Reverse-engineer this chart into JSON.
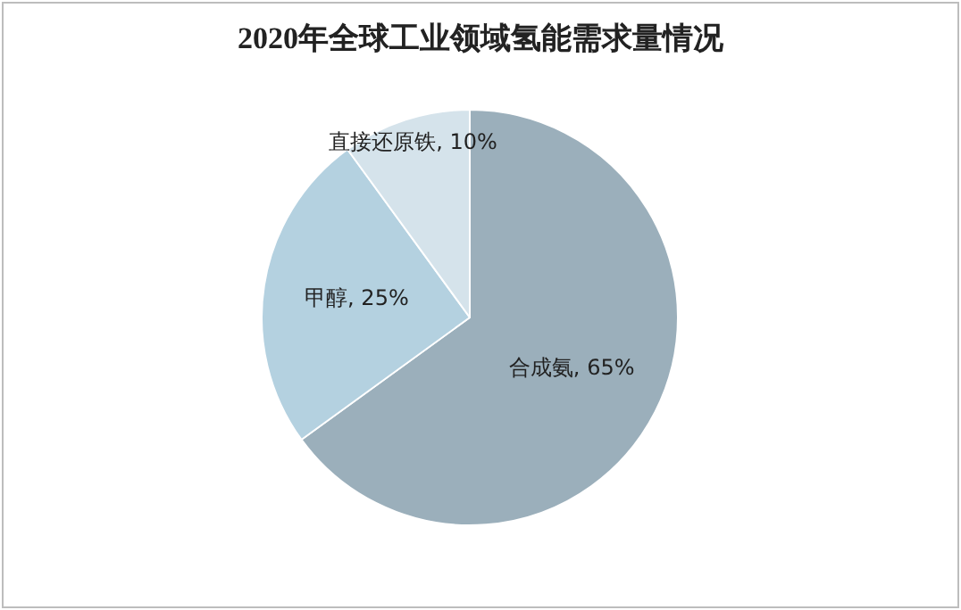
{
  "chart_data": {
    "type": "pie",
    "title": "2020年全球工业领域氢能需求量情况",
    "categories": [
      "合成氨",
      "甲醇",
      "直接还原铁"
    ],
    "values": [
      65,
      25,
      10
    ],
    "value_labels": [
      "65%",
      "25%",
      "10%"
    ],
    "colors": [
      "#9bafbb",
      "#b4d1e0",
      "#d5e3eb"
    ],
    "legend": false
  }
}
